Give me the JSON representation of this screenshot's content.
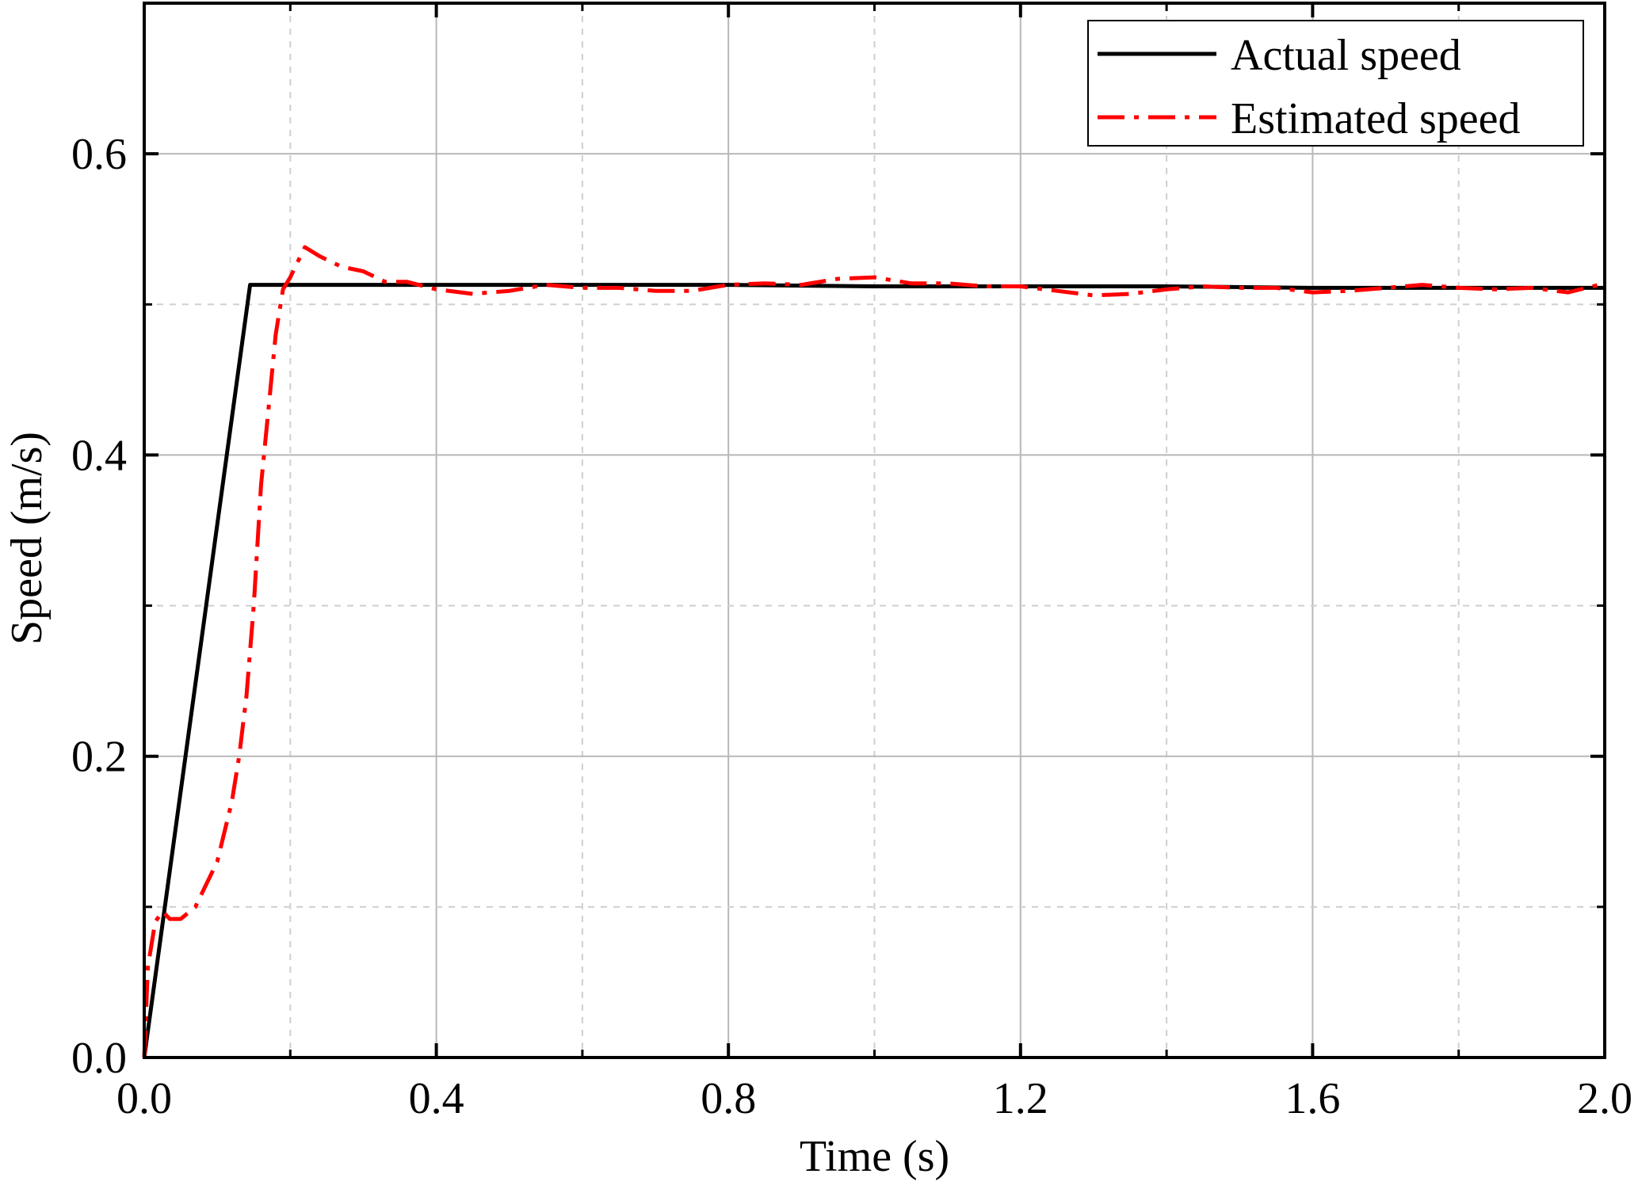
{
  "chart_data": {
    "type": "line",
    "title": "",
    "xlabel": "Time (s)",
    "ylabel": "Speed (m/s)",
    "xlim": [
      0.0,
      2.0
    ],
    "ylim": [
      0.0,
      0.7
    ],
    "xticks": [
      "0.0",
      "0.4",
      "0.8",
      "1.2",
      "1.6",
      "2.0"
    ],
    "xtick_values": [
      0.0,
      0.4,
      0.8,
      1.2,
      1.6,
      2.0
    ],
    "yticks": [
      "0.0",
      "0.2",
      "0.4",
      "0.6"
    ],
    "ytick_values": [
      0.0,
      0.2,
      0.4,
      0.6
    ],
    "grid": "on (solid at major ticks, dashed at minor ticks)",
    "legend_position": "top-right",
    "series": [
      {
        "name": "Actual speed",
        "color": "#000000",
        "style": "solid",
        "x": [
          0.0,
          0.145,
          0.2,
          0.4,
          0.6,
          0.8,
          1.0,
          1.2,
          1.4,
          1.6,
          1.8,
          2.0
        ],
        "y": [
          0.0,
          0.513,
          0.513,
          0.513,
          0.513,
          0.513,
          0.512,
          0.512,
          0.512,
          0.511,
          0.511,
          0.511
        ]
      },
      {
        "name": "Estimated speed",
        "color": "#ff0000",
        "style": "dash-dot",
        "x": [
          0.0,
          0.005,
          0.015,
          0.025,
          0.035,
          0.05,
          0.07,
          0.08,
          0.1,
          0.12,
          0.13,
          0.14,
          0.15,
          0.16,
          0.17,
          0.18,
          0.19,
          0.2,
          0.21,
          0.22,
          0.24,
          0.27,
          0.3,
          0.33,
          0.36,
          0.4,
          0.45,
          0.5,
          0.55,
          0.6,
          0.65,
          0.7,
          0.75,
          0.8,
          0.85,
          0.9,
          0.95,
          1.0,
          1.05,
          1.1,
          1.15,
          1.2,
          1.25,
          1.3,
          1.35,
          1.4,
          1.45,
          1.5,
          1.55,
          1.6,
          1.65,
          1.7,
          1.75,
          1.8,
          1.85,
          1.9,
          1.95,
          2.0
        ],
        "y": [
          0.0,
          0.06,
          0.09,
          0.097,
          0.092,
          0.092,
          0.1,
          0.11,
          0.13,
          0.17,
          0.2,
          0.24,
          0.3,
          0.38,
          0.43,
          0.48,
          0.51,
          0.518,
          0.528,
          0.538,
          0.532,
          0.525,
          0.522,
          0.515,
          0.515,
          0.51,
          0.507,
          0.509,
          0.513,
          0.511,
          0.511,
          0.509,
          0.509,
          0.513,
          0.514,
          0.513,
          0.517,
          0.518,
          0.514,
          0.514,
          0.512,
          0.512,
          0.509,
          0.506,
          0.507,
          0.51,
          0.512,
          0.511,
          0.511,
          0.508,
          0.509,
          0.511,
          0.513,
          0.511,
          0.51,
          0.511,
          0.508,
          0.514
        ]
      }
    ]
  }
}
